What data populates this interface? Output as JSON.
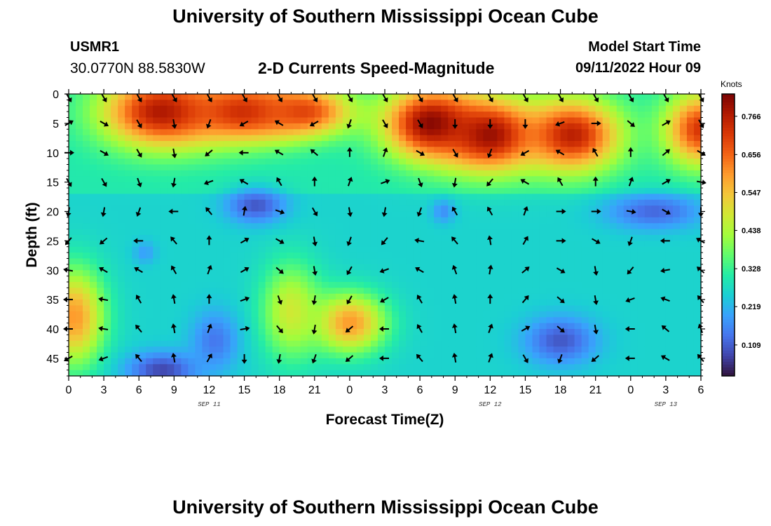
{
  "header": {
    "title": "University of Southern Mississippi Ocean Cube",
    "station": "USMR1",
    "coords": "30.0770N  88.5830W",
    "subtitle": "2-D Currents Speed-Magnitude",
    "model_start_label": "Model Start Time",
    "model_start_value": "09/11/2022 Hour 09"
  },
  "footer": {
    "title": "University of Southern Mississippi Ocean Cube"
  },
  "chart_data": {
    "type": "heatmap",
    "title": "2-D Currents Speed-Magnitude",
    "xlabel": "Forecast Time(Z)",
    "ylabel": "Depth (ft)",
    "x_start_hour": 0,
    "x_end_hour": 54,
    "x_ticks": [
      0,
      3,
      6,
      9,
      12,
      15,
      18,
      21,
      24,
      27,
      30,
      33,
      36,
      39,
      42,
      45,
      48,
      51,
      54
    ],
    "x_tick_labels": [
      "0",
      "3",
      "6",
      "9",
      "12",
      "15",
      "18",
      "21",
      "0",
      "3",
      "6",
      "9",
      "12",
      "15",
      "18",
      "21",
      "0",
      "3",
      "6"
    ],
    "date_labels": [
      {
        "hour": 12,
        "text": "SEP 11"
      },
      {
        "hour": 36,
        "text": "SEP 12"
      },
      {
        "hour": 51,
        "text": "SEP 13"
      }
    ],
    "y_ticks": [
      0,
      5,
      10,
      15,
      20,
      25,
      30,
      35,
      40,
      45
    ],
    "ylim": [
      0,
      48
    ],
    "colorbar": {
      "label": "Knots",
      "ticks": [
        0.109,
        0.219,
        0.328,
        0.438,
        0.547,
        0.656,
        0.766
      ],
      "range": [
        0.02,
        0.83
      ]
    },
    "colors": [
      "#30123b",
      "#4145ab",
      "#4675ed",
      "#39a2fc",
      "#1bcfd4",
      "#24eca6",
      "#61fc6c",
      "#a4fc3b",
      "#d1e834",
      "#f3c63a",
      "#fe9b2d",
      "#f36315",
      "#d93806",
      "#b11901",
      "#7a0403"
    ],
    "hot_spots": [
      {
        "hour": 8,
        "depth": 3,
        "speed": 0.78,
        "spread_h": 5,
        "spread_d": 6
      },
      {
        "hour": 15,
        "depth": 3,
        "speed": 0.74,
        "spread_h": 5,
        "spread_d": 5
      },
      {
        "hour": 20,
        "depth": 3,
        "speed": 0.7,
        "spread_h": 4,
        "spread_d": 4
      },
      {
        "hour": 31,
        "depth": 5,
        "speed": 0.82,
        "spread_h": 4,
        "spread_d": 6
      },
      {
        "hour": 36,
        "depth": 7,
        "speed": 0.8,
        "spread_h": 4,
        "spread_d": 6
      },
      {
        "hour": 43,
        "depth": 7,
        "speed": 0.76,
        "spread_h": 4,
        "spread_d": 6
      },
      {
        "hour": 54,
        "depth": 6,
        "speed": 0.72,
        "spread_h": 3,
        "spread_d": 6
      },
      {
        "hour": 0.5,
        "depth": 38,
        "speed": 0.6,
        "spread_h": 2.5,
        "spread_d": 8
      },
      {
        "hour": 24,
        "depth": 39,
        "speed": 0.6,
        "spread_h": 3,
        "spread_d": 5
      },
      {
        "hour": 19,
        "depth": 37,
        "speed": 0.48,
        "spread_h": 2.5,
        "spread_d": 8
      }
    ],
    "low_spots": [
      {
        "hour": 8,
        "depth": 47,
        "speed": 0.08,
        "spread_h": 3,
        "spread_d": 3
      },
      {
        "hour": 12.5,
        "depth": 42,
        "speed": 0.14,
        "spread_h": 2,
        "spread_d": 5
      },
      {
        "hour": 16,
        "depth": 19,
        "speed": 0.1,
        "spread_h": 2.5,
        "spread_d": 3
      },
      {
        "hour": 42,
        "depth": 42,
        "speed": 0.1,
        "spread_h": 3,
        "spread_d": 4
      },
      {
        "hour": 50,
        "depth": 20,
        "speed": 0.12,
        "spread_h": 4,
        "spread_d": 3
      },
      {
        "hour": 6.5,
        "depth": 27,
        "speed": 0.19,
        "spread_h": 1,
        "spread_d": 2
      },
      {
        "hour": 32,
        "depth": 20,
        "speed": 0.17,
        "spread_h": 1,
        "spread_d": 2
      }
    ],
    "arrow_rows": [
      {
        "depth": 0,
        "dirs": [
          150,
          150,
          150,
          150,
          150,
          150,
          150,
          150,
          150,
          150,
          150,
          150,
          150,
          150,
          150,
          150,
          150,
          150,
          150
        ]
      },
      {
        "depth": 5,
        "dirs": [
          60,
          120,
          150,
          170,
          200,
          240,
          300,
          240,
          200,
          150,
          150,
          180,
          180,
          180,
          250,
          90,
          130,
          60,
          150
        ]
      },
      {
        "depth": 10,
        "dirs": [
          90,
          120,
          150,
          170,
          230,
          270,
          300,
          310,
          0,
          20,
          120,
          150,
          200,
          240,
          300,
          330,
          0,
          50,
          120
        ]
      },
      {
        "depth": 15,
        "dirs": [
          150,
          150,
          160,
          190,
          250,
          300,
          330,
          0,
          20,
          70,
          160,
          190,
          220,
          300,
          330,
          0,
          20,
          60,
          100
        ]
      },
      {
        "depth": 20,
        "dirs": [
          190,
          190,
          200,
          270,
          320,
          10,
          110,
          150,
          170,
          190,
          200,
          330,
          330,
          20,
          90,
          90,
          100,
          120,
          180
        ]
      },
      {
        "depth": 25,
        "dirs": [
          220,
          230,
          270,
          320,
          0,
          60,
          120,
          170,
          200,
          220,
          280,
          320,
          350,
          30,
          90,
          120,
          200,
          270,
          300
        ]
      },
      {
        "depth": 30,
        "dirs": [
          280,
          300,
          300,
          330,
          20,
          60,
          130,
          170,
          210,
          250,
          300,
          340,
          10,
          50,
          120,
          170,
          220,
          260,
          310
        ]
      },
      {
        "depth": 35,
        "dirs": [
          270,
          280,
          330,
          350,
          0,
          70,
          160,
          190,
          210,
          240,
          330,
          350,
          0,
          40,
          130,
          170,
          250,
          290,
          320
        ]
      },
      {
        "depth": 40,
        "dirs": [
          270,
          280,
          320,
          350,
          20,
          80,
          140,
          190,
          230,
          270,
          330,
          350,
          20,
          60,
          130,
          170,
          270,
          310,
          340
        ]
      },
      {
        "depth": 45,
        "dirs": [
          240,
          250,
          320,
          350,
          30,
          180,
          190,
          200,
          230,
          270,
          320,
          350,
          20,
          150,
          200,
          230,
          270,
          300,
          320
        ]
      }
    ]
  }
}
